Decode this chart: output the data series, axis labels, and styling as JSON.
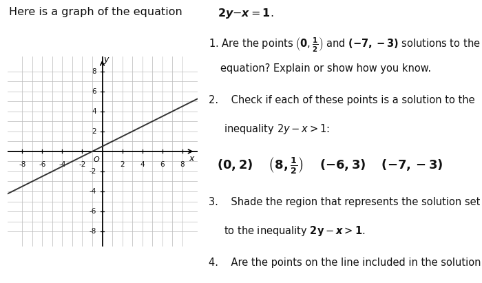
{
  "bg_color": "#ffffff",
  "grid_color": "#bbbbbb",
  "axis_color": "#000000",
  "line_color": "#333333",
  "line_width": 1.4,
  "graph_xlim": [
    -9.5,
    9.5
  ],
  "graph_ylim": [
    -9.5,
    9.5
  ],
  "font_size_title": 11.5,
  "font_size_body": 10.5,
  "font_size_points": 13,
  "font_size_axis_label": 9
}
